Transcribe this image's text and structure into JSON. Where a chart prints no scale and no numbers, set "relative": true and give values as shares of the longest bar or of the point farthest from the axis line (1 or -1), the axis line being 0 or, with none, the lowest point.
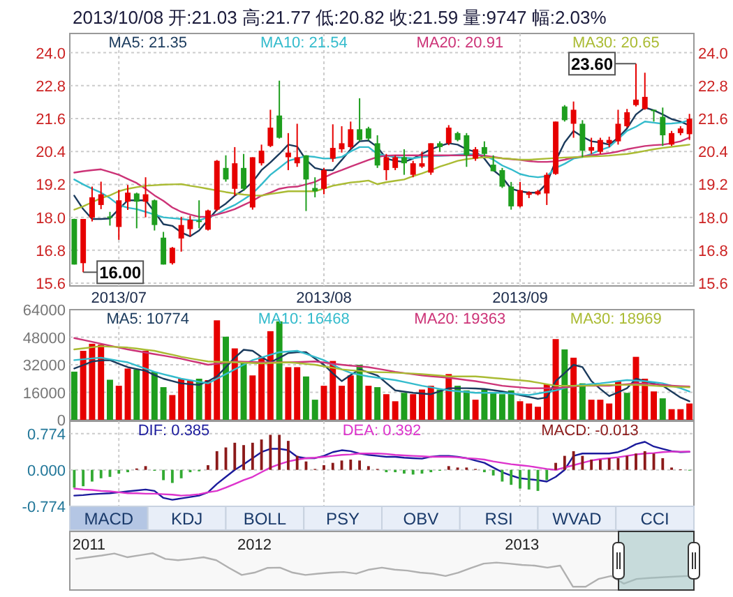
{
  "chart_data": [
    {
      "type": "candlestick",
      "title": "2013/10/08 开:21.03 高:21.77 低:20.82 收:21.59 量:9747 幅:2.03%",
      "legend": "top",
      "grid": true,
      "categories": [
        null,
        null,
        null,
        null,
        null,
        "2013/07",
        null,
        null,
        null,
        null,
        null,
        null,
        null,
        null,
        null,
        null,
        null,
        null,
        null,
        null,
        null,
        null,
        null,
        null,
        null,
        null,
        null,
        null,
        "2013/08",
        null,
        null,
        null,
        null,
        null,
        null,
        null,
        null,
        null,
        null,
        null,
        null,
        null,
        null,
        null,
        null,
        null,
        null,
        null,
        null,
        null,
        "2013/09",
        null,
        null,
        null,
        null,
        null,
        null,
        null,
        null,
        null,
        null,
        null,
        null,
        null,
        null,
        null,
        null,
        null,
        null,
        null
      ],
      "ohlc": [
        [
          17.94,
          17.95,
          16.28,
          16.28
        ],
        [
          16.33,
          17.94,
          16.0,
          17.94
        ],
        [
          17.99,
          19.12,
          17.85,
          18.73
        ],
        [
          18.45,
          19.3,
          18.3,
          18.84
        ],
        [
          18.03,
          18.2,
          17.7,
          17.98
        ],
        [
          17.65,
          19.0,
          17.18,
          18.62
        ],
        [
          18.57,
          19.18,
          18.27,
          18.9
        ],
        [
          18.87,
          18.9,
          17.6,
          18.57
        ],
        [
          18.57,
          19.46,
          18.0,
          18.84
        ],
        [
          18.62,
          18.65,
          17.52,
          17.72
        ],
        [
          17.26,
          17.47,
          16.28,
          16.28
        ],
        [
          16.33,
          16.92,
          16.28,
          16.89
        ],
        [
          17.23,
          18.02,
          16.75,
          17.72
        ],
        [
          17.57,
          18.06,
          17.31,
          17.91
        ],
        [
          17.88,
          18.62,
          17.6,
          17.85
        ],
        [
          17.55,
          18.28,
          17.52,
          18.25
        ],
        [
          18.28,
          20.09,
          18.23,
          20.06
        ],
        [
          19.8,
          20.26,
          19.3,
          19.38
        ],
        [
          19.04,
          20.56,
          18.79,
          19.97
        ],
        [
          19.8,
          20.31,
          18.96,
          19.04
        ],
        [
          18.36,
          20.19,
          18.28,
          20.19
        ],
        [
          19.97,
          20.65,
          19.89,
          20.43
        ],
        [
          20.6,
          21.92,
          20.56,
          21.27
        ],
        [
          21.71,
          22.98,
          20.87,
          20.9
        ],
        [
          20.19,
          21.07,
          19.72,
          20.36
        ],
        [
          19.97,
          21.41,
          19.84,
          20.19
        ],
        [
          20.26,
          20.26,
          18.23,
          19.38
        ],
        [
          19.07,
          19.46,
          18.73,
          18.95
        ],
        [
          19.04,
          19.8,
          18.84,
          19.72
        ],
        [
          20.14,
          21.39,
          20.02,
          20.53
        ],
        [
          20.48,
          21.32,
          20.36,
          20.7
        ],
        [
          20.56,
          21.49,
          20.48,
          21.21
        ],
        [
          21.21,
          22.34,
          20.77,
          20.82
        ],
        [
          21.24,
          21.3,
          20.8,
          20.87
        ],
        [
          20.7,
          20.99,
          19.8,
          19.89
        ],
        [
          19.72,
          20.31,
          19.35,
          20.19
        ],
        [
          19.8,
          20.26,
          19.72,
          20.19
        ],
        [
          20.19,
          20.48,
          19.55,
          19.97
        ],
        [
          19.55,
          20.06,
          19.46,
          19.97
        ],
        [
          19.85,
          20.39,
          19.8,
          19.97
        ],
        [
          19.63,
          20.7,
          19.55,
          20.7
        ],
        [
          20.7,
          20.77,
          20.39,
          20.56
        ],
        [
          20.7,
          21.36,
          20.63,
          21.27
        ],
        [
          21.07,
          21.12,
          20.77,
          20.82
        ],
        [
          20.99,
          21.07,
          19.84,
          20.26
        ],
        [
          20.14,
          20.56,
          20.06,
          20.48
        ],
        [
          20.56,
          20.77,
          20.22,
          20.31
        ],
        [
          19.92,
          20.26,
          19.68,
          19.68
        ],
        [
          19.72,
          19.8,
          19.07,
          19.12
        ],
        [
          19.12,
          19.29,
          18.28,
          18.4
        ],
        [
          18.4,
          19.29,
          18.36,
          18.99
        ],
        [
          18.82,
          18.95,
          18.7,
          18.91
        ],
        [
          18.84,
          19.0,
          18.8,
          18.95
        ],
        [
          18.87,
          19.63,
          18.45,
          19.55
        ],
        [
          19.58,
          21.49,
          19.55,
          21.49
        ],
        [
          22.04,
          22.09,
          21.49,
          21.54
        ],
        [
          21.41,
          22.22,
          20.9,
          21.92
        ],
        [
          21.41,
          21.54,
          20.19,
          20.43
        ],
        [
          20.43,
          20.9,
          20.31,
          20.56
        ],
        [
          20.39,
          20.9,
          20.31,
          20.82
        ],
        [
          20.7,
          20.94,
          20.56,
          20.82
        ],
        [
          20.77,
          21.92,
          20.65,
          21.41
        ],
        [
          21.32,
          21.95,
          21.27,
          21.83
        ],
        [
          22.09,
          23.6,
          22.04,
          22.29
        ],
        [
          21.95,
          23.27,
          21.92,
          22.39
        ],
        [
          21.92,
          21.92,
          21.49,
          21.88
        ],
        [
          21.66,
          22.0,
          20.6,
          20.99
        ],
        [
          20.65,
          21.15,
          20.6,
          21.07
        ],
        [
          21.07,
          21.32,
          20.99,
          21.24
        ],
        [
          21.03,
          21.77,
          20.82,
          21.59
        ]
      ],
      "series": [
        {
          "name": "MA5: 21.35",
          "type": "line",
          "color": "#1a3a5c",
          "values": [
            18.79,
            18.3,
            17.94,
            17.94,
            17.96,
            18.3,
            18.62,
            18.62,
            18.62,
            18.2,
            17.75,
            17.69,
            17.45,
            17.31,
            17.52,
            17.9,
            18.28,
            18.5,
            18.79,
            19.0,
            19.29,
            19.72,
            20.0,
            20.31,
            20.65,
            20.58,
            20.09,
            19.8,
            19.72,
            19.72,
            20.09,
            20.48,
            20.77,
            20.8,
            20.56,
            20.14,
            20.06,
            20.02,
            20.14,
            20.31,
            20.48,
            20.6,
            20.7,
            20.65,
            20.48,
            20.39,
            20.14,
            19.72,
            19.46,
            19.04,
            18.95,
            18.9,
            18.9,
            19.24,
            20.06,
            20.73,
            21.15,
            20.94,
            20.77,
            20.73,
            20.65,
            20.9,
            21.24,
            21.75,
            22.0,
            21.9,
            21.75,
            21.58,
            21.49,
            21.35
          ]
        },
        {
          "name": "MA10: 21.54",
          "type": "line",
          "color": "#33bbcc",
          "values": [
            19.38,
            19.2,
            19.04,
            18.9,
            18.7,
            18.45,
            18.35,
            18.3,
            18.2,
            18.1,
            18.0,
            17.97,
            17.94,
            17.9,
            17.89,
            18.0,
            18.11,
            18.3,
            18.45,
            18.65,
            18.87,
            19.2,
            19.55,
            19.8,
            20.06,
            20.15,
            20.23,
            20.2,
            20.14,
            20.15,
            20.2,
            20.4,
            20.56,
            20.56,
            20.31,
            20.25,
            20.19,
            20.17,
            20.15,
            20.2,
            20.23,
            20.24,
            20.25,
            20.28,
            20.31,
            20.3,
            20.25,
            20.1,
            19.89,
            19.75,
            19.58,
            19.5,
            19.46,
            19.5,
            19.8,
            19.95,
            20.14,
            20.2,
            20.31,
            20.45,
            20.56,
            20.85,
            21.15,
            21.3,
            21.49,
            21.45,
            21.41,
            21.42,
            21.45,
            21.54
          ]
        },
        {
          "name": "MA20: 20.91",
          "type": "line",
          "color": "#cc3377",
          "values": [
            19.63,
            19.68,
            19.72,
            19.75,
            19.65,
            19.55,
            19.4,
            19.25,
            19.04,
            18.8,
            18.6,
            18.36,
            18.2,
            18.1,
            18.02,
            18.02,
            18.1,
            18.19,
            18.3,
            18.45,
            18.6,
            18.79,
            18.9,
            19.04,
            19.1,
            19.12,
            19.2,
            19.29,
            19.45,
            19.6,
            19.72,
            19.85,
            19.97,
            20.09,
            20.2,
            20.25,
            20.26,
            20.26,
            20.26,
            20.26,
            20.26,
            20.26,
            20.26,
            20.26,
            20.26,
            20.26,
            20.25,
            20.2,
            20.15,
            20.12,
            20.09,
            20.05,
            20.02,
            20.02,
            20.04,
            20.1,
            20.18,
            20.22,
            20.26,
            20.3,
            20.34,
            20.4,
            20.48,
            20.54,
            20.6,
            20.63,
            20.65,
            20.7,
            20.77,
            20.91
          ]
        },
        {
          "name": "MA30: 20.65",
          "type": "line",
          "color": "#aabb33",
          "values": [
            18.28,
            18.4,
            18.55,
            18.7,
            18.8,
            18.95,
            19.04,
            19.1,
            19.15,
            19.17,
            19.19,
            19.2,
            19.21,
            19.15,
            19.1,
            19.04,
            18.98,
            18.92,
            18.87,
            18.83,
            18.8,
            18.79,
            18.85,
            18.9,
            18.95,
            18.95,
            18.95,
            18.95,
            19.05,
            19.15,
            19.21,
            19.27,
            19.3,
            19.34,
            19.21,
            19.28,
            19.33,
            19.38,
            19.5,
            19.6,
            19.72,
            19.85,
            19.95,
            20.06,
            20.12,
            20.16,
            20.19,
            20.18,
            20.15,
            20.13,
            20.1,
            20.1,
            20.12,
            20.14,
            20.16,
            20.18,
            20.19,
            20.2,
            20.22,
            20.23,
            20.25,
            20.28,
            20.31,
            20.36,
            20.42,
            20.48,
            20.53,
            20.57,
            20.61,
            20.65
          ]
        }
      ],
      "ylim": [
        15.5,
        24.7
      ],
      "yticks": [
        {
          "value": 15.6,
          "label": "15.6"
        },
        {
          "value": 16.8,
          "label": "16.8"
        },
        {
          "value": 18,
          "label": "18.0"
        },
        {
          "value": 19.2,
          "label": "19.2"
        },
        {
          "value": 20.4,
          "label": "20.4"
        },
        {
          "value": 21.6,
          "label": "21.6"
        },
        {
          "value": 22.8,
          "label": "22.8"
        },
        {
          "value": 24,
          "label": "24.0"
        }
      ],
      "y2lim": [
        15.5,
        24.7
      ],
      "y2ticks": [
        {
          "value": 15.6,
          "label": "15.6"
        },
        {
          "value": 16.8,
          "label": "16.8"
        },
        {
          "value": 18,
          "label": "18.0"
        },
        {
          "value": 19.2,
          "label": "19.2"
        },
        {
          "value": 20.4,
          "label": "20.4"
        },
        {
          "value": 21.6,
          "label": "21.6"
        },
        {
          "value": 22.8,
          "label": "22.8"
        },
        {
          "value": 24,
          "label": "24.0"
        }
      ],
      "annotations": [
        {
          "text": "16.00",
          "y": 16.0
        },
        {
          "text": "23.60",
          "y": 23.6
        }
      ]
    },
    {
      "type": "bar",
      "legend": "top",
      "grid": true,
      "tick_labels": "y",
      "categories": [
        null,
        null,
        null,
        null,
        null,
        "2013/07",
        null,
        null,
        null,
        null,
        null,
        null,
        null,
        null,
        null,
        null,
        null,
        null,
        null,
        null,
        null,
        null,
        null,
        null,
        null,
        null,
        null,
        null,
        "2013/08",
        null,
        null,
        null,
        null,
        null,
        null,
        null,
        null,
        null,
        null,
        null,
        null,
        null,
        null,
        null,
        null,
        null,
        null,
        null,
        null,
        null,
        "2013/09",
        null,
        null,
        null,
        null,
        null,
        null,
        null,
        null,
        null,
        null,
        null,
        null,
        null,
        null,
        null,
        null,
        null,
        null,
        null
      ],
      "values": [
        28000,
        40100,
        44200,
        43700,
        23300,
        19800,
        29800,
        29300,
        40100,
        27900,
        19000,
        14400,
        23900,
        23100,
        23900,
        23100,
        57800,
        48300,
        41500,
        33400,
        25800,
        36600,
        51500,
        57200,
        30600,
        30600,
        25200,
        11700,
        19800,
        34200,
        19800,
        25800,
        32000,
        19800,
        19000,
        14900,
        10800,
        15700,
        14900,
        17600,
        19800,
        17600,
        26600,
        19800,
        17100,
        11700,
        17600,
        15700,
        14900,
        17100,
        10800,
        9500,
        7600,
        20600,
        46900,
        40900,
        36100,
        21200,
        11700,
        11700,
        9500,
        22500,
        15700,
        36600,
        23900,
        16500,
        12500,
        6200,
        6200,
        9500
      ],
      "colors": [
        "#1e9e1e",
        "#e60000",
        "#e60000",
        "#e60000",
        "#1e9e1e",
        "#e60000",
        "#e60000",
        "#1e9e1e",
        "#e60000",
        "#1e9e1e",
        "#1e9e1e",
        "#e60000",
        "#e60000",
        "#e60000",
        "#1e9e1e",
        "#e60000",
        "#e60000",
        "#1e9e1e",
        "#e60000",
        "#1e9e1e",
        "#e60000",
        "#e60000",
        "#e60000",
        "#1e9e1e",
        "#e60000",
        "#e60000",
        "#1e9e1e",
        "#1e9e1e",
        "#e60000",
        "#e60000",
        "#e60000",
        "#e60000",
        "#1e9e1e",
        "#e60000",
        "#1e9e1e",
        "#e60000",
        "#e60000",
        "#1e9e1e",
        "#e60000",
        "#e60000",
        "#e60000",
        "#1e9e1e",
        "#e60000",
        "#1e9e1e",
        "#1e9e1e",
        "#e60000",
        "#1e9e1e",
        "#1e9e1e",
        "#1e9e1e",
        "#1e9e1e",
        "#e60000",
        "#e60000",
        "#e60000",
        "#e60000",
        "#e60000",
        "#1e9e1e",
        "#e60000",
        "#1e9e1e",
        "#e60000",
        "#e60000",
        "#e60000",
        "#e60000",
        "#1e9e1e",
        "#e60000",
        "#e60000",
        "#e60000",
        "#1e9e1e",
        "#e60000",
        "#e60000",
        "#e60000"
      ],
      "series": [
        {
          "name": "MA5: 10774",
          "type": "line",
          "color": "#1a3a5c",
          "values": [
            29800,
            31800,
            33900,
            34500,
            34700,
            32600,
            30600,
            29500,
            28500,
            26000,
            23900,
            22500,
            21200,
            20700,
            20300,
            22500,
            25200,
            30600,
            36100,
            40700,
            40100,
            36500,
            33400,
            36000,
            38800,
            39300,
            39300,
            35600,
            32000,
            27000,
            22500,
            26000,
            29300,
            27500,
            25800,
            21400,
            17100,
            16400,
            15700,
            15300,
            14900,
            16600,
            18400,
            18400,
            18400,
            18200,
            17900,
            17200,
            16500,
            15500,
            14400,
            13300,
            12200,
            13000,
            22500,
            27200,
            32000,
            30600,
            22500,
            18000,
            13800,
            16000,
            18400,
            23900,
            22500,
            21100,
            19800,
            16400,
            13000,
            10774
          ]
        },
        {
          "name": "MA10: 16468",
          "type": "line",
          "color": "#33bbcc",
          "values": [
            34700,
            35200,
            35700,
            36100,
            35200,
            34300,
            33400,
            31500,
            29700,
            27900,
            26500,
            25200,
            23900,
            23000,
            22100,
            21200,
            23900,
            26600,
            29300,
            32000,
            34700,
            36200,
            37800,
            39300,
            39700,
            40100,
            38300,
            36500,
            34700,
            32000,
            29300,
            27300,
            26200,
            25200,
            24500,
            23800,
            23100,
            22000,
            20900,
            19800,
            18900,
            18000,
            17100,
            16600,
            16200,
            15700,
            15700,
            15700,
            15700,
            15300,
            14800,
            14400,
            15300,
            16200,
            17100,
            18500,
            19800,
            20300,
            20800,
            21200,
            21800,
            22500,
            23100,
            22800,
            22500,
            21900,
            21200,
            19800,
            18400,
            16468
          ]
        },
        {
          "name": "MA20: 19363",
          "type": "line",
          "color": "#cc3377",
          "values": [
            47500,
            46400,
            45300,
            44200,
            43100,
            42000,
            40900,
            40000,
            39100,
            38200,
            37300,
            36400,
            35500,
            34300,
            33200,
            32000,
            32600,
            33300,
            33900,
            33700,
            33600,
            33400,
            33400,
            33400,
            33400,
            33500,
            33700,
            33900,
            33300,
            32600,
            32000,
            31500,
            31100,
            30600,
            29700,
            28800,
            27900,
            27200,
            26500,
            25800,
            25300,
            24900,
            24400,
            23800,
            23100,
            22500,
            21600,
            20700,
            19800,
            19300,
            18900,
            18400,
            18400,
            18400,
            18400,
            18900,
            19300,
            19800,
            19800,
            19800,
            19800,
            20300,
            20700,
            21200,
            21000,
            20700,
            20300,
            19900,
            19600,
            19363
          ]
        },
        {
          "name": "MA30: 18969",
          "type": "line",
          "color": "#aabb33",
          "values": [
            40900,
            41500,
            42200,
            42800,
            42500,
            42300,
            42000,
            41400,
            40700,
            40100,
            38900,
            37800,
            36600,
            35700,
            34800,
            33900,
            33700,
            33600,
            33400,
            33200,
            33000,
            32800,
            33000,
            33200,
            33400,
            33000,
            32500,
            32000,
            31100,
            30200,
            29300,
            28800,
            28400,
            27900,
            27700,
            27600,
            27400,
            27100,
            26900,
            26600,
            26100,
            25700,
            25200,
            25200,
            25200,
            25200,
            24800,
            24300,
            23900,
            23400,
            23000,
            22500,
            21600,
            20700,
            19800,
            19800,
            19800,
            19800,
            20000,
            20200,
            20300,
            20300,
            20300,
            20300,
            20100,
            19800,
            19500,
            19300,
            19100,
            18969
          ]
        }
      ],
      "ylim": [
        0,
        64000
      ],
      "yticks": [
        0,
        16000,
        32000,
        48000,
        64000
      ]
    },
    {
      "type": "bar",
      "legend": "top",
      "grid": true,
      "tick_labels": "y",
      "categories": [
        null,
        null,
        null,
        null,
        null,
        "2013/07",
        null,
        null,
        null,
        null,
        null,
        null,
        null,
        null,
        null,
        null,
        null,
        null,
        null,
        null,
        null,
        null,
        null,
        null,
        null,
        null,
        null,
        null,
        "2013/08",
        null,
        null,
        null,
        null,
        null,
        null,
        null,
        null,
        null,
        null,
        null,
        null,
        null,
        null,
        null,
        null,
        null,
        null,
        null,
        null,
        null,
        "2013/09",
        null,
        null,
        null,
        null,
        null,
        null,
        null,
        null,
        null,
        null,
        null,
        null,
        null,
        null,
        null,
        null,
        null,
        null,
        null
      ],
      "series": [
        {
          "name": "DIF: 0.385",
          "type": "line",
          "color": "#1a1a9c",
          "values": [
            -0.55,
            -0.54,
            -0.52,
            -0.51,
            -0.5,
            -0.48,
            -0.46,
            -0.44,
            -0.42,
            -0.45,
            -0.6,
            -0.64,
            -0.61,
            -0.58,
            -0.55,
            -0.48,
            -0.3,
            -0.15,
            0.0,
            0.12,
            0.25,
            0.38,
            0.45,
            0.45,
            0.42,
            0.28,
            0.25,
            0.25,
            0.3,
            0.38,
            0.42,
            0.4,
            0.35,
            0.32,
            0.3,
            0.28,
            0.28,
            0.26,
            0.25,
            0.24,
            0.28,
            0.3,
            0.3,
            0.28,
            0.25,
            0.2,
            0.15,
            0.05,
            -0.05,
            -0.12,
            -0.18,
            -0.2,
            -0.22,
            -0.25,
            -0.15,
            0.0,
            0.3,
            0.35,
            0.35,
            0.35,
            0.35,
            0.38,
            0.45,
            0.55,
            0.6,
            0.5,
            0.45,
            0.4,
            0.38,
            0.385
          ]
        },
        {
          "name": "DEA: 0.392",
          "type": "line",
          "color": "#dd33cc",
          "values": [
            -0.4,
            -0.42,
            -0.43,
            -0.45,
            -0.46,
            -0.48,
            -0.5,
            -0.5,
            -0.51,
            -0.51,
            -0.52,
            -0.53,
            -0.55,
            -0.54,
            -0.52,
            -0.48,
            -0.45,
            -0.38,
            -0.3,
            -0.22,
            -0.15,
            -0.05,
            0.05,
            0.12,
            0.18,
            0.22,
            0.25,
            0.26,
            0.28,
            0.3,
            0.32,
            0.33,
            0.35,
            0.35,
            0.35,
            0.34,
            0.32,
            0.31,
            0.3,
            0.29,
            0.28,
            0.28,
            0.28,
            0.27,
            0.25,
            0.24,
            0.22,
            0.18,
            0.15,
            0.12,
            0.1,
            0.08,
            0.05,
            0.02,
            0.0,
            0.05,
            0.1,
            0.15,
            0.2,
            0.23,
            0.25,
            0.27,
            0.3,
            0.33,
            0.35,
            0.36,
            0.38,
            0.39,
            0.39,
            0.392
          ]
        },
        {
          "name": "MACD: -0.013",
          "type": "bar",
          "color": "#8b1a1a",
          "values": [
            -0.38,
            -0.35,
            -0.25,
            -0.18,
            -0.15,
            -0.08,
            -0.05,
            0.03,
            0.08,
            -0.02,
            -0.22,
            -0.28,
            -0.18,
            -0.05,
            -0.03,
            0.1,
            0.4,
            0.48,
            0.58,
            0.53,
            0.58,
            0.65,
            0.75,
            0.75,
            0.62,
            0.3,
            0.18,
            0.02,
            0.1,
            0.15,
            0.2,
            0.22,
            0.2,
            0.08,
            0.02,
            -0.05,
            -0.05,
            -0.08,
            -0.1,
            -0.08,
            -0.05,
            -0.02,
            0.08,
            0.05,
            0.05,
            0.02,
            -0.05,
            -0.12,
            -0.25,
            -0.32,
            -0.4,
            -0.42,
            -0.45,
            -0.22,
            0.15,
            0.3,
            0.4,
            0.3,
            0.22,
            0.22,
            0.25,
            0.25,
            0.3,
            0.35,
            0.4,
            0.35,
            0.25,
            0.05,
            0.01,
            -0.013
          ],
          "colors": [
            "#33aa33",
            "#33aa33",
            "#33aa33",
            "#33aa33",
            "#33aa33",
            "#33aa33",
            "#33aa33",
            "#8b1a1a",
            "#8b1a1a",
            "#33aa33",
            "#33aa33",
            "#33aa33",
            "#33aa33",
            "#33aa33",
            "#33aa33",
            "#8b1a1a",
            "#8b1a1a",
            "#8b1a1a",
            "#8b1a1a",
            "#8b1a1a",
            "#8b1a1a",
            "#8b1a1a",
            "#8b1a1a",
            "#8b1a1a",
            "#8b1a1a",
            "#8b1a1a",
            "#8b1a1a",
            "#8b1a1a",
            "#8b1a1a",
            "#8b1a1a",
            "#8b1a1a",
            "#8b1a1a",
            "#8b1a1a",
            "#8b1a1a",
            "#8b1a1a",
            "#33aa33",
            "#33aa33",
            "#33aa33",
            "#33aa33",
            "#33aa33",
            "#33aa33",
            "#33aa33",
            "#8b1a1a",
            "#8b1a1a",
            "#8b1a1a",
            "#8b1a1a",
            "#33aa33",
            "#33aa33",
            "#33aa33",
            "#33aa33",
            "#33aa33",
            "#33aa33",
            "#33aa33",
            "#33aa33",
            "#8b1a1a",
            "#8b1a1a",
            "#8b1a1a",
            "#8b1a1a",
            "#8b1a1a",
            "#8b1a1a",
            "#8b1a1a",
            "#8b1a1a",
            "#8b1a1a",
            "#8b1a1a",
            "#8b1a1a",
            "#8b1a1a",
            "#8b1a1a",
            "#8b1a1a",
            "#8b1a1a",
            "#33aa33"
          ]
        }
      ],
      "ylim": [
        -0.78,
        1.04
      ],
      "yticks": [
        {
          "value": -0.774,
          "label": "-0.774"
        },
        {
          "value": 0,
          "label": "0.000"
        },
        {
          "value": 0.774,
          "label": "0.774"
        }
      ]
    },
    {
      "type": "other",
      "categories": [
        "MACD",
        "KDJ",
        "BOLL",
        "PSY",
        "OBV",
        "RSI",
        "WVAD",
        "CCI"
      ]
    },
    {
      "type": "line",
      "relative": true,
      "color": "#b0b0b0",
      "categories": [
        null,
        "2011",
        null,
        null,
        null,
        null,
        null,
        null,
        null,
        null,
        null,
        null,
        null,
        null,
        "2012",
        null,
        null,
        null,
        null,
        null,
        null,
        null,
        null,
        null,
        null,
        null,
        null,
        null,
        null,
        null,
        null,
        null,
        null,
        null,
        null,
        "2013",
        null,
        null,
        null,
        null,
        null,
        null,
        null,
        null,
        null,
        null,
        null,
        null,
        null
      ],
      "values": [
        0.83,
        0.88,
        0.93,
        0.99,
        0.88,
        0.94,
        1.0,
        0.83,
        0.79,
        0.83,
        0.88,
        0.79,
        0.56,
        0.35,
        0.42,
        0.56,
        0.57,
        0.42,
        0.35,
        0.39,
        0.42,
        0.44,
        0.39,
        0.51,
        0.57,
        0.51,
        0.48,
        0.42,
        0.39,
        0.32,
        0.42,
        0.56,
        0.69,
        0.72,
        0.69,
        0.65,
        0.63,
        0.57,
        0.63,
        0,
        0,
        0.23,
        0.32,
        0.09,
        0.23,
        0.26,
        0.28,
        0.3,
        0.32
      ]
    }
  ]
}
